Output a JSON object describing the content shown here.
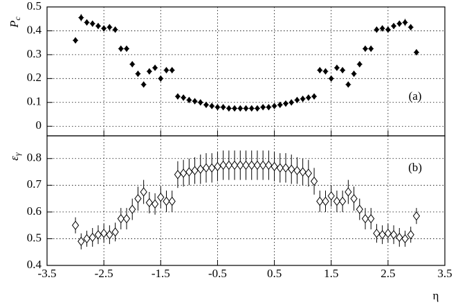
{
  "chart_data": [
    {
      "type": "scatter",
      "ylabel": "P",
      "ylabel_sub": "c",
      "annotation": "(a)",
      "marker": "filled-diamond",
      "color": "#000000",
      "grid": true,
      "xlim": [
        -3.5,
        3.5
      ],
      "xticks": [
        -3.5,
        -2.5,
        -1.5,
        -0.5,
        0.5,
        1.5,
        2.5,
        3.5
      ],
      "ylim": [
        -0.04,
        0.5
      ],
      "yticks": [
        0,
        0.1,
        0.2,
        0.3,
        0.4,
        0.5
      ],
      "x": [
        -3.0,
        -2.9,
        -2.8,
        -2.7,
        -2.6,
        -2.5,
        -2.4,
        -2.3,
        -2.2,
        -2.1,
        -2.0,
        -1.9,
        -1.8,
        -1.7,
        -1.6,
        -1.5,
        -1.4,
        -1.3,
        -1.2,
        -1.1,
        -1.0,
        -0.9,
        -0.8,
        -0.7,
        -0.6,
        -0.5,
        -0.4,
        -0.3,
        -0.2,
        -0.1,
        0.0,
        0.1,
        0.2,
        0.3,
        0.4,
        0.5,
        0.6,
        0.7,
        0.8,
        0.9,
        1.0,
        1.1,
        1.2,
        1.3,
        1.4,
        1.5,
        1.6,
        1.7,
        1.8,
        1.9,
        2.0,
        2.1,
        2.2,
        2.3,
        2.4,
        2.5,
        2.6,
        2.7,
        2.8,
        2.9,
        3.0
      ],
      "values": [
        0.36,
        0.455,
        0.435,
        0.43,
        0.42,
        0.41,
        0.415,
        0.405,
        0.325,
        0.325,
        0.26,
        0.22,
        0.175,
        0.23,
        0.245,
        0.2,
        0.235,
        0.235,
        0.125,
        0.12,
        0.11,
        0.105,
        0.1,
        0.09,
        0.085,
        0.08,
        0.08,
        0.075,
        0.075,
        0.075,
        0.075,
        0.075,
        0.075,
        0.08,
        0.08,
        0.085,
        0.09,
        0.095,
        0.1,
        0.11,
        0.115,
        0.12,
        0.125,
        0.235,
        0.23,
        0.2,
        0.245,
        0.235,
        0.175,
        0.22,
        0.26,
        0.325,
        0.325,
        0.405,
        0.41,
        0.405,
        0.42,
        0.43,
        0.435,
        0.415,
        0.31
      ],
      "errors": [
        0.012,
        0.015,
        0.012,
        0.012,
        0.012,
        0.012,
        0.012,
        0.012,
        0.012,
        0.012,
        0.01,
        0.01,
        0.01,
        0.01,
        0.01,
        0.01,
        0.01,
        0.01,
        0.004,
        0.004,
        0.004,
        0.004,
        0.004,
        0.004,
        0.004,
        0.004,
        0.004,
        0.004,
        0.004,
        0.004,
        0.004,
        0.004,
        0.004,
        0.004,
        0.004,
        0.004,
        0.004,
        0.004,
        0.004,
        0.004,
        0.004,
        0.004,
        0.004,
        0.01,
        0.01,
        0.01,
        0.01,
        0.01,
        0.01,
        0.01,
        0.01,
        0.012,
        0.012,
        0.012,
        0.012,
        0.012,
        0.012,
        0.012,
        0.015,
        0.012,
        0.012
      ]
    },
    {
      "type": "scatter",
      "ylabel": "ε",
      "ylabel_sub": "γ",
      "xlabel": "η",
      "annotation": "(b)",
      "marker": "open-diamond",
      "color": "#000000",
      "grid": true,
      "xlim": [
        -3.5,
        3.5
      ],
      "xticks": [
        -3.5,
        -2.5,
        -1.5,
        -0.5,
        0.5,
        1.5,
        2.5,
        3.5
      ],
      "ylim": [
        0.4,
        0.885
      ],
      "yticks": [
        0.4,
        0.5,
        0.6,
        0.7,
        0.8
      ],
      "x": [
        -3.0,
        -2.9,
        -2.8,
        -2.7,
        -2.6,
        -2.5,
        -2.4,
        -2.3,
        -2.2,
        -2.1,
        -2.0,
        -1.9,
        -1.8,
        -1.7,
        -1.6,
        -1.5,
        -1.4,
        -1.3,
        -1.2,
        -1.1,
        -1.0,
        -0.9,
        -0.8,
        -0.7,
        -0.6,
        -0.5,
        -0.4,
        -0.3,
        -0.2,
        -0.1,
        0.0,
        0.1,
        0.2,
        0.3,
        0.4,
        0.5,
        0.6,
        0.7,
        0.8,
        0.9,
        1.0,
        1.1,
        1.2,
        1.3,
        1.4,
        1.5,
        1.6,
        1.7,
        1.8,
        1.9,
        2.0,
        2.1,
        2.2,
        2.3,
        2.4,
        2.5,
        2.6,
        2.7,
        2.8,
        2.9,
        3.0
      ],
      "values": [
        0.55,
        0.49,
        0.5,
        0.505,
        0.515,
        0.52,
        0.515,
        0.525,
        0.575,
        0.575,
        0.61,
        0.65,
        0.675,
        0.635,
        0.63,
        0.655,
        0.64,
        0.64,
        0.74,
        0.745,
        0.75,
        0.755,
        0.76,
        0.765,
        0.765,
        0.77,
        0.775,
        0.775,
        0.775,
        0.775,
        0.775,
        0.775,
        0.775,
        0.775,
        0.775,
        0.77,
        0.765,
        0.765,
        0.76,
        0.755,
        0.75,
        0.745,
        0.715,
        0.64,
        0.64,
        0.66,
        0.64,
        0.64,
        0.675,
        0.65,
        0.61,
        0.575,
        0.575,
        0.52,
        0.515,
        0.52,
        0.515,
        0.505,
        0.5,
        0.515,
        0.585
      ],
      "errors": [
        0.03,
        0.03,
        0.03,
        0.035,
        0.035,
        0.035,
        0.035,
        0.035,
        0.04,
        0.04,
        0.04,
        0.045,
        0.045,
        0.04,
        0.04,
        0.04,
        0.04,
        0.04,
        0.05,
        0.05,
        0.05,
        0.05,
        0.055,
        0.055,
        0.055,
        0.055,
        0.055,
        0.055,
        0.055,
        0.055,
        0.055,
        0.055,
        0.055,
        0.055,
        0.055,
        0.055,
        0.055,
        0.055,
        0.055,
        0.05,
        0.05,
        0.05,
        0.05,
        0.04,
        0.04,
        0.04,
        0.04,
        0.04,
        0.045,
        0.045,
        0.04,
        0.04,
        0.04,
        0.035,
        0.035,
        0.035,
        0.035,
        0.035,
        0.03,
        0.03,
        0.03
      ]
    }
  ]
}
